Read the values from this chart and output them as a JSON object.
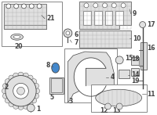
{
  "bg_color": "#ffffff",
  "lc": "#444444",
  "fs": 5.5,
  "highlight_blue": "#4488cc",
  "gray_fill": "#c8c8c8",
  "light_gray": "#e0e0e0",
  "dark_gray": "#999999",
  "white": "#ffffff",
  "box_stroke": "#888888"
}
